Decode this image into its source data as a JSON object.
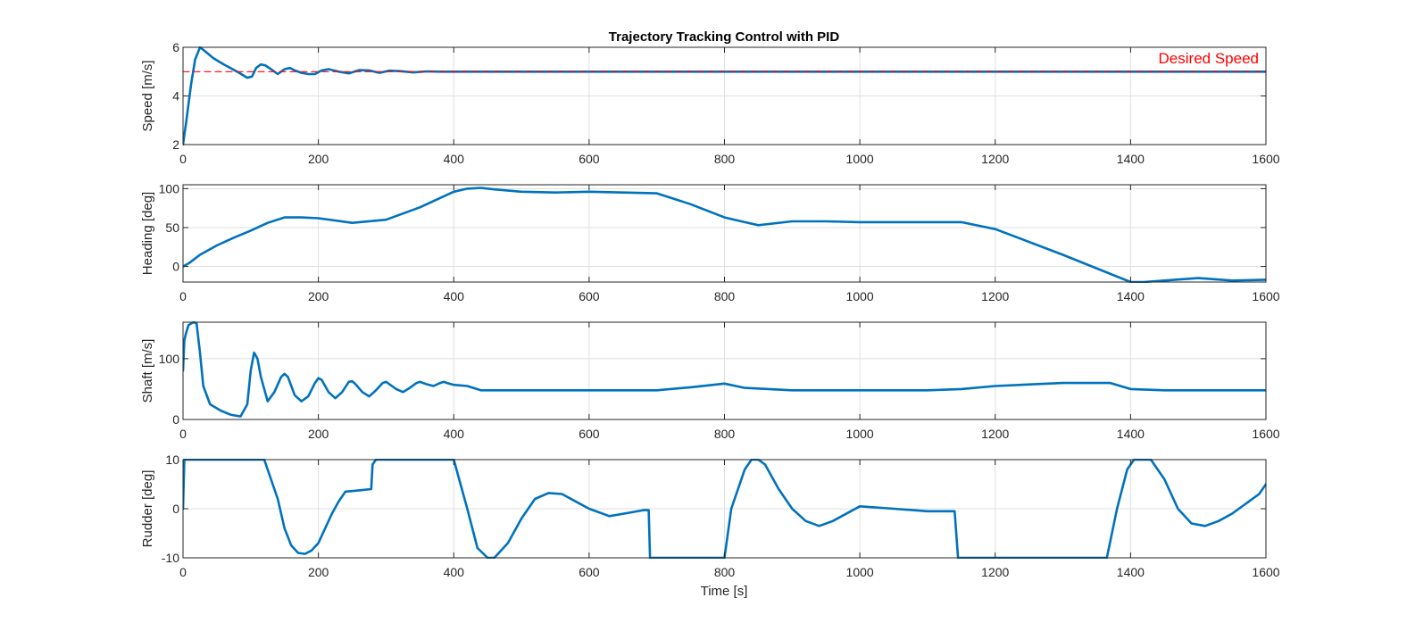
{
  "figure": {
    "title": "Trajectory Tracking Control with PID",
    "xlabel": "Time [s]"
  },
  "colors": {
    "series": "#0072BD",
    "reference": "#FF0000",
    "grid": "#DFDFDF",
    "axes": "#262626"
  },
  "chart_data": [
    {
      "type": "line",
      "ylabel": "Speed [m/s]",
      "xlim": [
        0,
        1600
      ],
      "ylim": [
        2,
        6
      ],
      "x_ticks": [
        0,
        200,
        400,
        600,
        800,
        1000,
        1200,
        1400,
        1600
      ],
      "y_ticks": [
        2,
        4,
        6
      ],
      "grid": true,
      "annotation": "Desired Speed",
      "series": [
        {
          "style": "solid",
          "x": [
            0,
            5,
            12,
            18,
            25,
            32,
            45,
            60,
            80,
            95,
            102,
            108,
            115,
            122,
            130,
            140,
            150,
            158,
            165,
            175,
            185,
            195,
            205,
            215,
            230,
            245,
            260,
            275,
            290,
            305,
            320,
            340,
            360,
            380,
            400,
            450,
            500,
            600,
            700,
            800,
            900,
            1000,
            1100,
            1200,
            1300,
            1400,
            1500,
            1600
          ],
          "y": [
            2.0,
            3.0,
            4.5,
            5.5,
            6.0,
            5.85,
            5.55,
            5.3,
            5.0,
            4.75,
            4.8,
            5.15,
            5.3,
            5.25,
            5.1,
            4.9,
            5.1,
            5.15,
            5.05,
            4.95,
            4.9,
            4.9,
            5.05,
            5.1,
            5.0,
            4.93,
            5.06,
            5.05,
            4.95,
            5.04,
            5.02,
            4.97,
            5.01,
            5.0,
            5.0,
            5.0,
            5.0,
            5.0,
            5.0,
            5.0,
            5.0,
            5.0,
            5.0,
            5.0,
            5.0,
            5.0,
            5.0,
            5.0
          ]
        },
        {
          "style": "dashed",
          "x": [
            0,
            1600
          ],
          "y": [
            5,
            5
          ]
        }
      ]
    },
    {
      "type": "line",
      "ylabel": "Heading [deg]",
      "xlim": [
        0,
        1600
      ],
      "ylim": [
        -20,
        105
      ],
      "x_ticks": [
        0,
        200,
        400,
        600,
        800,
        1000,
        1200,
        1400,
        1600
      ],
      "y_ticks": [
        0,
        50,
        100
      ],
      "grid": true,
      "series": [
        {
          "style": "solid",
          "x": [
            0,
            10,
            25,
            50,
            75,
            100,
            125,
            150,
            175,
            200,
            250,
            300,
            350,
            400,
            420,
            440,
            460,
            500,
            550,
            600,
            650,
            700,
            750,
            800,
            830,
            850,
            900,
            950,
            1000,
            1050,
            1100,
            1150,
            1200,
            1300,
            1400,
            1420,
            1450,
            1500,
            1550,
            1600
          ],
          "y": [
            0,
            5,
            15,
            27,
            37,
            46,
            56,
            63,
            63,
            62,
            56,
            60,
            76,
            96,
            100,
            101,
            99,
            96,
            95,
            96,
            95,
            94,
            80,
            63,
            57,
            53,
            58,
            58,
            57,
            57,
            57,
            57,
            48,
            15,
            -20,
            -20,
            -18,
            -15,
            -18,
            -17
          ]
        }
      ]
    },
    {
      "type": "line",
      "ylabel": "Shaft [m/s]",
      "xlim": [
        0,
        1600
      ],
      "ylim": [
        0,
        160
      ],
      "x_ticks": [
        0,
        200,
        400,
        600,
        800,
        1000,
        1200,
        1400,
        1600
      ],
      "y_ticks": [
        0,
        100
      ],
      "grid": true,
      "series": [
        {
          "style": "solid",
          "x": [
            0,
            2,
            4,
            8,
            12,
            16,
            20,
            25,
            30,
            40,
            55,
            70,
            85,
            95,
            100,
            105,
            110,
            115,
            125,
            135,
            145,
            150,
            155,
            165,
            175,
            185,
            195,
            200,
            205,
            215,
            225,
            235,
            245,
            250,
            255,
            265,
            275,
            285,
            295,
            300,
            305,
            315,
            325,
            335,
            345,
            350,
            360,
            370,
            380,
            385,
            390,
            400,
            420,
            440,
            500,
            600,
            700,
            750,
            800,
            830,
            900,
            1000,
            1100,
            1150,
            1200,
            1300,
            1370,
            1400,
            1450,
            1500,
            1600
          ],
          "y": [
            80,
            130,
            140,
            155,
            158,
            160,
            158,
            110,
            55,
            25,
            15,
            8,
            5,
            25,
            80,
            110,
            100,
            70,
            30,
            45,
            70,
            75,
            70,
            40,
            30,
            38,
            60,
            68,
            65,
            45,
            35,
            45,
            62,
            63,
            58,
            45,
            38,
            48,
            60,
            62,
            58,
            50,
            45,
            52,
            60,
            62,
            58,
            55,
            60,
            62,
            60,
            57,
            55,
            48,
            48,
            48,
            48,
            53,
            59,
            52,
            48,
            48,
            48,
            50,
            55,
            60,
            60,
            50,
            48,
            48,
            48
          ]
        }
      ]
    },
    {
      "type": "line",
      "ylabel": "Rudder [deg]",
      "xlim": [
        0,
        1600
      ],
      "ylim": [
        -10,
        10
      ],
      "x_ticks": [
        0,
        200,
        400,
        600,
        800,
        1000,
        1200,
        1400,
        1600
      ],
      "y_ticks": [
        -10,
        0,
        10
      ],
      "grid": true,
      "series": [
        {
          "style": "solid",
          "x": [
            0,
            2,
            120,
            140,
            150,
            160,
            170,
            180,
            190,
            200,
            210,
            220,
            230,
            240,
            250,
            265,
            278,
            280,
            285,
            400,
            420,
            435,
            450,
            460,
            480,
            500,
            520,
            540,
            560,
            580,
            600,
            630,
            660,
            680,
            688,
            690,
            700,
            800,
            810,
            830,
            840,
            850,
            860,
            880,
            900,
            920,
            940,
            960,
            1000,
            1050,
            1100,
            1140,
            1145,
            1150,
            1200,
            1365,
            1380,
            1395,
            1405,
            1420,
            1430,
            1450,
            1470,
            1490,
            1510,
            1530,
            1550,
            1570,
            1590,
            1600
          ],
          "y": [
            0,
            10,
            10,
            2,
            -4,
            -7.5,
            -9,
            -9.2,
            -8.5,
            -7,
            -4,
            -1,
            1.5,
            3.5,
            3.6,
            3.8,
            4,
            9,
            10,
            10,
            0,
            -8,
            -10,
            -10,
            -7,
            -2,
            2,
            3.2,
            3,
            1.5,
            0,
            -1.5,
            -0.8,
            -0.3,
            -0.3,
            -10,
            -10,
            -10,
            0,
            8,
            10,
            10,
            9,
            4,
            0,
            -2.5,
            -3.5,
            -2.5,
            0.5,
            0,
            -0.5,
            -0.5,
            -10,
            -10,
            -10,
            -10,
            0,
            8,
            10,
            10,
            10,
            6,
            0,
            -3,
            -3.5,
            -2.5,
            -1,
            1,
            3,
            5
          ]
        }
      ]
    }
  ]
}
